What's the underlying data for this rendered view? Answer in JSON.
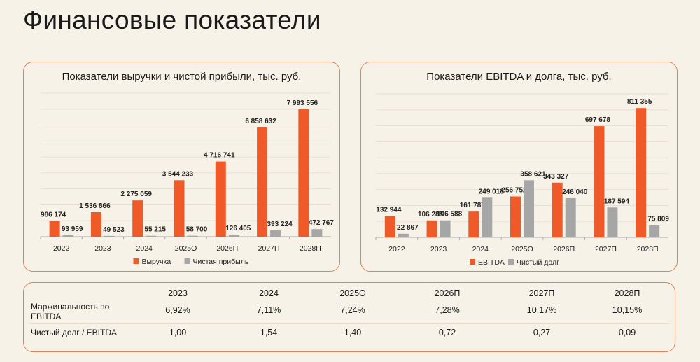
{
  "page_title": "Финансовые показатели",
  "colors": {
    "primary": "#f05a28",
    "secondary": "#a6a6a6",
    "border": "#e0825a"
  },
  "chart_data": [
    {
      "type": "bar",
      "title": "Показатели выручки и чистой прибыли, тыс. руб.",
      "categories": [
        "2022",
        "2023",
        "2024",
        "2025О",
        "2026П",
        "2027П",
        "2028П"
      ],
      "ylim": [
        0,
        9000000
      ],
      "grid": true,
      "legend": "bottom",
      "series": [
        {
          "name": "Выручка",
          "color": "#f05a28",
          "values": [
            986174,
            1536866,
            2275059,
            3544233,
            4716741,
            6858632,
            7993556
          ],
          "labels": [
            "986 174",
            "1 536 866",
            "2 275 059",
            "3 544 233",
            "4 716 741",
            "6 858 632",
            "7 993 556"
          ]
        },
        {
          "name": "Чистая прибыль",
          "color": "#a6a6a6",
          "values": [
            93959,
            49523,
            55215,
            58700,
            126405,
            393224,
            472767
          ],
          "labels": [
            "93 959",
            "49 523",
            "55 215",
            "58 700",
            "126 405",
            "393 224",
            "472 767"
          ]
        }
      ]
    },
    {
      "type": "bar",
      "title": "Показатели EBITDA и долга, тыс. руб.",
      "categories": [
        "2022",
        "2023",
        "2024",
        "2025О",
        "2026П",
        "2027П",
        "2028П"
      ],
      "ylim": [
        0,
        900000
      ],
      "grid": true,
      "legend": "bottom",
      "series": [
        {
          "name": "EBITDA",
          "color": "#f05a28",
          "values": [
            132944,
            106288,
            161787,
            256752,
            343327,
            697678,
            811355
          ],
          "labels": [
            "132 944",
            "106 288",
            "161 787",
            "256 752",
            "343 327",
            "697 678",
            "811 355"
          ]
        },
        {
          "name": "Чистый долг",
          "color": "#a6a6a6",
          "values": [
            22867,
            106588,
            249018,
            358621,
            246040,
            187594,
            75809
          ],
          "labels": [
            "22 867",
            "106 588",
            "249 018",
            "358 621",
            "246 040",
            "187 594",
            "75 809"
          ]
        }
      ]
    }
  ],
  "table": {
    "headers": [
      "2023",
      "2024",
      "2025О",
      "2026П",
      "2027П",
      "2028П"
    ],
    "rows": [
      {
        "label": "Маржинальность по EBITDA",
        "values": [
          "6,92%",
          "7,11%",
          "7,24%",
          "7,28%",
          "10,17%",
          "10,15%"
        ]
      },
      {
        "label": "Чистый долг / EBITDA",
        "values": [
          "1,00",
          "1,54",
          "1,40",
          "0,72",
          "0,27",
          "0,09"
        ]
      }
    ]
  }
}
